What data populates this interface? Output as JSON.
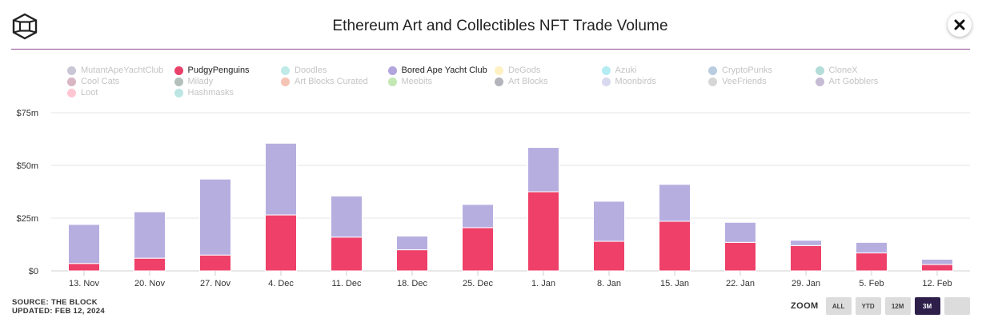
{
  "header": {
    "title": "Ethereum Art and Collectibles NFT Trade Volume"
  },
  "legend": [
    {
      "label": "MutantApeYachtClub",
      "color": "#c9c6d6",
      "active": false
    },
    {
      "label": "PudgyPenguins",
      "color": "#e8416a",
      "active": true
    },
    {
      "label": "Doodles",
      "color": "#bfeae8",
      "active": false
    },
    {
      "label": "Bored Ape Yacht Club",
      "color": "#b2a4dc",
      "active": true
    },
    {
      "label": "DeGods",
      "color": "#fff1c2",
      "active": false
    },
    {
      "label": "Azuki",
      "color": "#b4ecf4",
      "active": false
    },
    {
      "label": "CryptoPunks",
      "color": "#b9cce0",
      "active": false
    },
    {
      "label": "CloneX",
      "color": "#b4dcd8",
      "active": false
    },
    {
      "label": "Cool Cats",
      "color": "#d8b6c4",
      "active": false
    },
    {
      "label": "Milady",
      "color": "#b4c0bc",
      "active": false
    },
    {
      "label": "Art Blocks Curated",
      "color": "#f6c4b4",
      "active": false
    },
    {
      "label": "Meebits",
      "color": "#c4e8b4",
      "active": false
    },
    {
      "label": "Art Blocks",
      "color": "#b4b4bc",
      "active": false
    },
    {
      "label": "Moonbirds",
      "color": "#d8d8ee",
      "active": false
    },
    {
      "label": "VeeFriends",
      "color": "#d6d6d6",
      "active": false
    },
    {
      "label": "Art Gobblers",
      "color": "#c6bcd6",
      "active": false
    },
    {
      "label": "Loot",
      "color": "#ffc6d2",
      "active": false
    },
    {
      "label": "Hashmasks",
      "color": "#bce6e4",
      "active": false
    }
  ],
  "footer": {
    "source": "SOURCE: THE BLOCK",
    "updated": "UPDATED: FEB 12, 2024"
  },
  "zoom": {
    "label": "ZOOM",
    "buttons": [
      "ALL",
      "YTD",
      "12M",
      "3M",
      ""
    ],
    "active": "3M"
  },
  "chart_data": {
    "type": "bar",
    "stacked": true,
    "categories": [
      "13. Nov",
      "20. Nov",
      "27. Nov",
      "4. Dec",
      "11. Dec",
      "18. Dec",
      "25. Dec",
      "1. Jan",
      "8. Jan",
      "15. Jan",
      "22. Jan",
      "29. Jan",
      "5. Feb",
      "12. Feb"
    ],
    "series": [
      {
        "name": "PudgyPenguins",
        "color": "#ee4069",
        "values": [
          3.5,
          6,
          7.5,
          26.5,
          16,
          10,
          20.5,
          37.5,
          14,
          23.5,
          13.5,
          12,
          8.5,
          3
        ]
      },
      {
        "name": "Bored Ape Yacht Club",
        "color": "#b7aee0",
        "values": [
          18.5,
          22,
          36,
          34,
          19.5,
          6.5,
          11,
          21,
          19,
          17.5,
          9.5,
          2.5,
          5,
          2.5
        ]
      }
    ],
    "yticks": [
      "$0",
      "$25m",
      "$50m",
      "$75m"
    ],
    "ytick_values": [
      0,
      25,
      50,
      75
    ],
    "ylim": [
      0,
      75
    ],
    "grid": true
  }
}
